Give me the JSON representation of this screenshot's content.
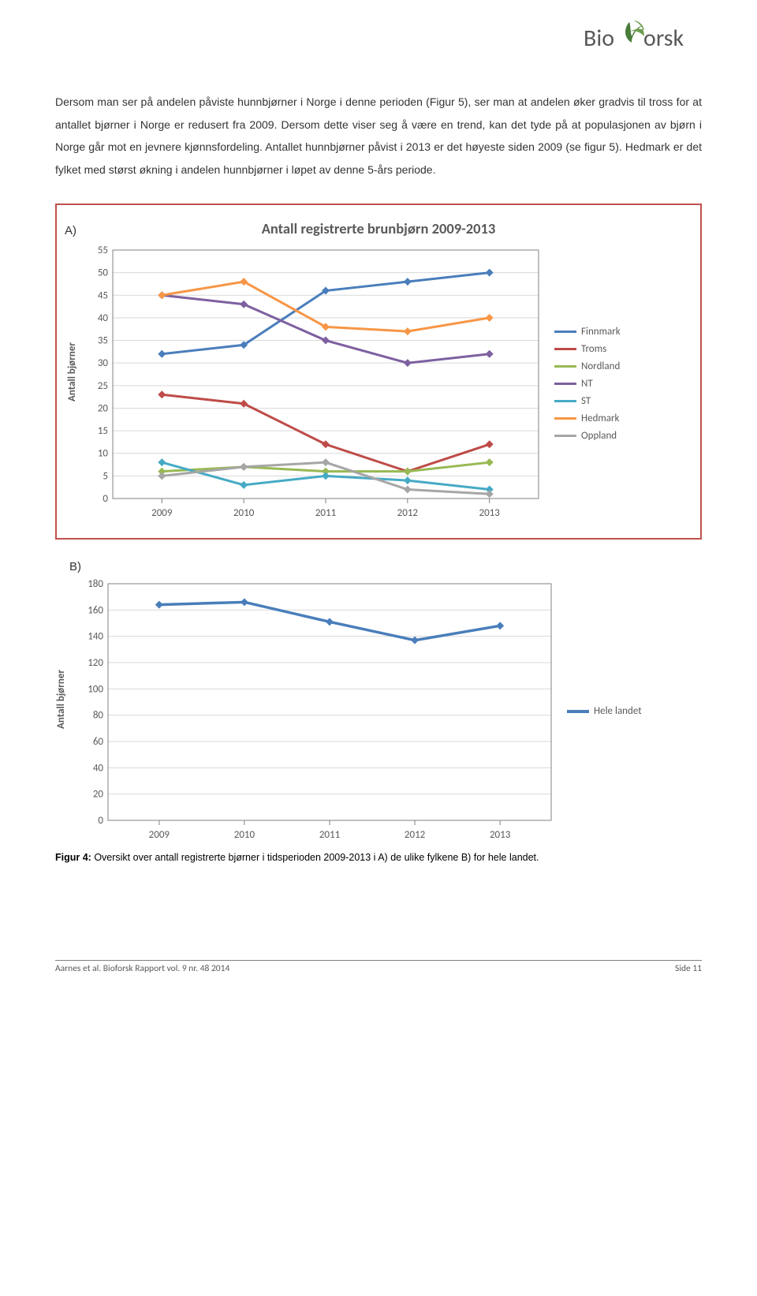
{
  "logo": {
    "text": "Bioforsk",
    "leaf_color": "#4a7c3a",
    "text_color": "#4a7c3a"
  },
  "paragraph": "Dersom man ser på andelen påviste hunnbjørner i Norge i denne perioden (Figur 5), ser man at andelen øker gradvis til tross for at antallet bjørner i Norge er redusert fra 2009. Dersom dette viser seg å være en trend, kan det tyde på at populasjonen av bjørn i Norge går mot en jevnere kjønnsfordeling. Antallet hunnbjørner påvist i 2013 er det høyeste siden 2009 (se figur 5). Hedmark er det fylket med størst økning i andelen hunnbjørner i løpet av denne 5-års periode.",
  "chart_a": {
    "panel_label": "A)",
    "type": "line",
    "title": "Antall registrerte brunbjørn 2009-2013",
    "y_label": "Antall bjørner",
    "x_categories": [
      "2009",
      "2010",
      "2011",
      "2012",
      "2013"
    ],
    "ylim": [
      0,
      55
    ],
    "ytick_step": 5,
    "line_width": 3,
    "marker_size": 5,
    "grid_color": "#d9d9d9",
    "border_color": "#808080",
    "tick_fontsize": 13,
    "series": [
      {
        "name": "Finnmark",
        "color": "#4a7ebb",
        "values": [
          32,
          34,
          46,
          48,
          50
        ]
      },
      {
        "name": "Troms",
        "color": "#be4b48",
        "values": [
          23,
          21,
          12,
          6,
          12
        ]
      },
      {
        "name": "Nordland",
        "color": "#98b954",
        "values": [
          6,
          7,
          6,
          6,
          8
        ]
      },
      {
        "name": "NT",
        "color": "#7d60a0",
        "values": [
          45,
          43,
          35,
          30,
          32
        ]
      },
      {
        "name": "ST",
        "color": "#46aac5",
        "values": [
          8,
          3,
          5,
          4,
          2
        ]
      },
      {
        "name": "Hedmark",
        "color": "#f79646",
        "values": [
          45,
          48,
          38,
          37,
          40
        ]
      },
      {
        "name": "Oppland",
        "color": "#a6a6a6",
        "values": [
          5,
          7,
          8,
          2,
          1
        ]
      }
    ]
  },
  "chart_b": {
    "panel_label": "B)",
    "type": "line",
    "y_label": "Antall bjørner",
    "x_categories": [
      "2009",
      "2010",
      "2011",
      "2012",
      "2013"
    ],
    "ylim": [
      0,
      180
    ],
    "ytick_step": 20,
    "line_width": 3.5,
    "marker_size": 5,
    "grid_color": "#d9d9d9",
    "border_color": "#808080",
    "tick_fontsize": 13,
    "series": [
      {
        "name": "Hele landet",
        "color": "#4a7ebb",
        "values": [
          164,
          166,
          151,
          137,
          148
        ]
      }
    ]
  },
  "caption": {
    "bold": "Figur 4:",
    "text": " Oversikt over antall registrerte bjørner i tidsperioden 2009-2013 i A) de ulike fylkene B) for hele landet."
  },
  "footer": {
    "left": "Aarnes et al. Bioforsk Rapport vol. 9 nr. 48 2014",
    "right": "Side 11"
  }
}
